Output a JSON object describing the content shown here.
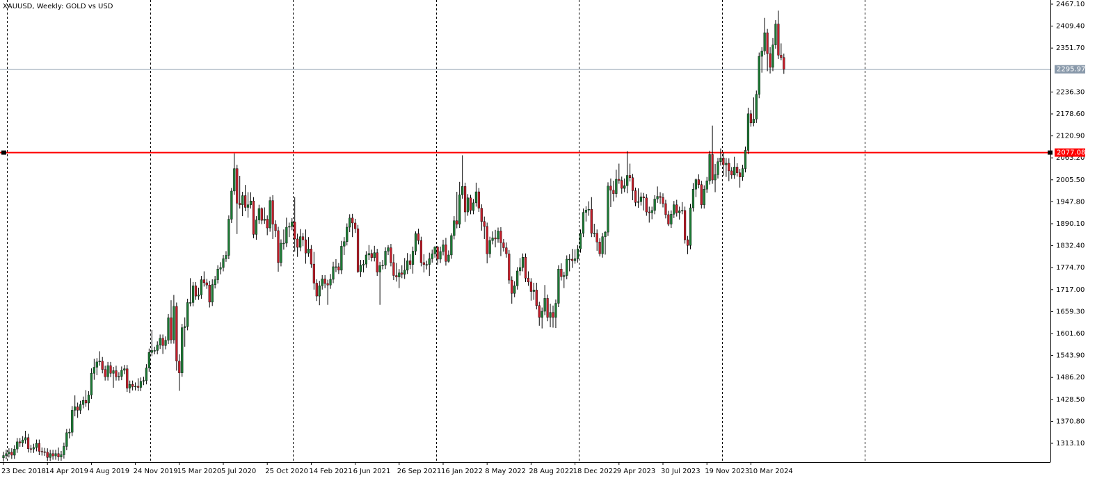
{
  "chart_data": {
    "type": "candlestick",
    "title": "XAUUSD, Weekly:  GOLD vs USD",
    "categories": [
      "23 Dec 2018",
      null,
      null,
      null,
      null,
      null,
      null,
      null,
      null,
      null,
      null,
      null,
      null,
      null,
      null,
      null,
      "14 Apr 2019",
      null,
      null,
      null,
      null,
      null,
      null,
      null,
      null,
      null,
      null,
      null,
      null,
      null,
      null,
      null,
      "4 Aug 2019",
      null,
      null,
      null,
      null,
      null,
      null,
      null,
      null,
      null,
      null,
      null,
      null,
      null,
      null,
      null,
      "24 Nov 2019",
      null,
      null,
      null,
      null,
      null,
      null,
      null,
      null,
      null,
      null,
      null,
      null,
      null,
      null,
      null,
      "15 Mar 2020",
      null,
      null,
      null,
      null,
      null,
      null,
      null,
      null,
      null,
      null,
      null,
      null,
      null,
      null,
      null,
      "5 Jul 2020",
      null,
      null,
      null,
      null,
      null,
      null,
      null,
      null,
      null,
      null,
      null,
      null,
      null,
      null,
      null,
      "25 Oct 2020",
      null,
      null,
      null,
      null,
      null,
      null,
      null,
      null,
      null,
      null,
      null,
      null,
      null,
      null,
      null,
      "14 Feb 2021",
      null,
      null,
      null,
      null,
      null,
      null,
      null,
      null,
      null,
      null,
      null,
      null,
      null,
      null,
      null,
      "6 Jun 2021",
      null,
      null,
      null,
      null,
      null,
      null,
      null,
      null,
      null,
      null,
      null,
      null,
      null,
      null,
      null,
      "26 Sep 2021",
      null,
      null,
      null,
      null,
      null,
      null,
      null,
      null,
      null,
      null,
      null,
      null,
      null,
      null,
      null,
      "16 Jan 2022",
      null,
      null,
      null,
      null,
      null,
      null,
      null,
      null,
      null,
      null,
      null,
      null,
      null,
      null,
      null,
      "8 May 2022",
      null,
      null,
      null,
      null,
      null,
      null,
      null,
      null,
      null,
      null,
      null,
      null,
      null,
      null,
      null,
      "28 Aug 2022",
      null,
      null,
      null,
      null,
      null,
      null,
      null,
      null,
      null,
      null,
      null,
      null,
      null,
      null,
      null,
      "18 Dec 2022",
      null,
      null,
      null,
      null,
      null,
      null,
      null,
      null,
      null,
      null,
      null,
      null,
      null,
      null,
      null,
      "9 Apr 2023",
      null,
      null,
      null,
      null,
      null,
      null,
      null,
      null,
      null,
      null,
      null,
      null,
      null,
      null,
      null,
      "30 Jul 2023",
      null,
      null,
      null,
      null,
      null,
      null,
      null,
      null,
      null,
      null,
      null,
      null,
      null,
      null,
      null,
      "19 Nov 2023",
      null,
      null,
      null,
      null,
      null,
      null,
      null,
      null,
      null,
      null,
      null,
      null,
      null,
      null,
      null,
      "10 Mar 2024",
      null,
      null,
      null,
      null,
      null,
      null,
      null,
      null,
      null,
      null,
      null,
      null
    ],
    "open": [
      1275,
      1281,
      1286,
      1290,
      1282,
      1298,
      1317,
      1314,
      1322,
      1328,
      1299,
      1298,
      1302,
      1313,
      1292,
      1291,
      1290,
      1276,
      1286,
      1280,
      1286,
      1277,
      1283,
      1305,
      1341,
      1342,
      1400,
      1409,
      1400,
      1415,
      1426,
      1419,
      1440,
      1497,
      1513,
      1527,
      1529,
      1507,
      1488,
      1517,
      1497,
      1504,
      1488,
      1489,
      1505,
      1509,
      1458,
      1468,
      1462,
      1463,
      1460,
      1476,
      1478,
      1511,
      1552,
      1557,
      1557,
      1571,
      1589,
      1570,
      1584,
      1643,
      1585,
      1673,
      1529,
      1498,
      1617,
      1620,
      1683,
      1683,
      1727,
      1700,
      1703,
      1743,
      1735,
      1729,
      1684,
      1730,
      1743,
      1771,
      1775,
      1798,
      1807,
      1902,
      1976,
      2035,
      1944,
      1940,
      1964,
      1933,
      1940,
      1950,
      1862,
      1900,
      1930,
      1899,
      1902,
      1879,
      1951,
      1889,
      1872,
      1788,
      1839,
      1839,
      1881,
      1883,
      1895,
      1850,
      1828,
      1856,
      1848,
      1813,
      1824,
      1784,
      1734,
      1700,
      1727,
      1745,
      1733,
      1729,
      1744,
      1777,
      1777,
      1768,
      1831,
      1843,
      1881,
      1905,
      1892,
      1877,
      1764,
      1781,
      1784,
      1808,
      1812,
      1801,
      1814,
      1763,
      1780,
      1781,
      1818,
      1827,
      1788,
      1754,
      1750,
      1761,
      1757,
      1768,
      1793,
      1783,
      1818,
      1864,
      1846,
      1788,
      1783,
      1783,
      1798,
      1811,
      1829,
      1797,
      1817,
      1835,
      1791,
      1808,
      1859,
      1898,
      1889,
      1966,
      1988,
      1921,
      1958,
      1925,
      1945,
      1974,
      1931,
      1896,
      1883,
      1811,
      1846,
      1853,
      1850,
      1871,
      1840,
      1827,
      1811,
      1742,
      1707,
      1727,
      1766,
      1775,
      1802,
      1747,
      1737,
      1712,
      1716,
      1675,
      1644,
      1660,
      1694,
      1644,
      1657,
      1644,
      1681,
      1771,
      1751,
      1754,
      1797,
      1797,
      1793,
      1798,
      1824,
      1865,
      1920,
      1926,
      1928,
      1865,
      1865,
      1842,
      1811,
      1856,
      1868,
      1989,
      1978,
      1969,
      2007,
      2004,
      1983,
      1990,
      2017,
      2011,
      1977,
      1946,
      1948,
      1961,
      1958,
      1921,
      1919,
      1925,
      1955,
      1962,
      1959,
      1943,
      1914,
      1889,
      1915,
      1940,
      1919,
      1924,
      1925,
      1848,
      1833,
      1932,
      1981,
      2006,
      1993,
      1940,
      1981,
      2003,
      2072,
      2005,
      2019,
      2053,
      2063,
      2045,
      2049,
      2029,
      2018,
      2039,
      2024,
      2013,
      2035,
      2083,
      2179,
      2155,
      2165,
      2230,
      2330,
      2344,
      2392,
      2337,
      2301,
      2360,
      2415,
      2333,
      2327
    ],
    "high": [
      1291,
      1296,
      1300,
      1300,
      1308,
      1327,
      1327,
      1332,
      1346,
      1338,
      1309,
      1312,
      1323,
      1323,
      1302,
      1301,
      1300,
      1296,
      1296,
      1296,
      1302,
      1293,
      1315,
      1351,
      1352,
      1411,
      1439,
      1420,
      1425,
      1436,
      1453,
      1450,
      1510,
      1535,
      1537,
      1555,
      1540,
      1517,
      1527,
      1527,
      1514,
      1517,
      1500,
      1515,
      1519,
      1519,
      1478,
      1478,
      1473,
      1484,
      1486,
      1488,
      1521,
      1562,
      1611,
      1567,
      1581,
      1599,
      1599,
      1594,
      1653,
      1689,
      1703,
      1683,
      1547,
      1627,
      1644,
      1693,
      1747,
      1737,
      1737,
      1722,
      1753,
      1765,
      1745,
      1740,
      1744,
      1753,
      1781,
      1789,
      1808,
      1818,
      1912,
      1984,
      2075,
      2045,
      2016,
      1974,
      1992,
      1973,
      1973,
      1960,
      1910,
      1940,
      1933,
      1933,
      1912,
      1961,
      1965,
      1899,
      1882,
      1849,
      1875,
      1906,
      1893,
      1905,
      1960,
      1864,
      1876,
      1866,
      1875,
      1855,
      1834,
      1816,
      1744,
      1740,
      1755,
      1755,
      1743,
      1758,
      1790,
      1797,
      1787,
      1845,
      1855,
      1891,
      1915,
      1916,
      1903,
      1887,
      1795,
      1795,
      1818,
      1834,
      1822,
      1832,
      1824,
      1790,
      1795,
      1828,
      1834,
      1837,
      1810,
      1787,
      1771,
      1781,
      1800,
      1813,
      1810,
      1830,
      1870,
      1877,
      1856,
      1810,
      1793,
      1814,
      1822,
      1831,
      1832,
      1830,
      1848,
      1853,
      1820,
      1865,
      1910,
      1974,
      2000,
      2070,
      1998,
      1968,
      1966,
      1955,
      1998,
      1984,
      1941,
      1909,
      1893,
      1856,
      1870,
      1874,
      1880,
      1881,
      1850,
      1841,
      1821,
      1752,
      1739,
      1776,
      1800,
      1812,
      1812,
      1765,
      1747,
      1735,
      1735,
      1685,
      1670,
      1729,
      1704,
      1680,
      1675,
      1691,
      1781,
      1786,
      1764,
      1807,
      1810,
      1824,
      1823,
      1834,
      1875,
      1930,
      1936,
      1949,
      1960,
      1890,
      1875,
      1852,
      1866,
      1871,
      1999,
      2009,
      2003,
      2032,
      2048,
      2014,
      2009,
      2081,
      2048,
      2021,
      1985,
      1983,
      1972,
      1971,
      1968,
      1935,
      1935,
      1965,
      1988,
      1973,
      1970,
      1953,
      1924,
      1925,
      1950,
      1953,
      1935,
      1947,
      1935,
      1858,
      1942,
      1997,
      2009,
      2020,
      2003,
      1991,
      2013,
      2082,
      2148,
      2047,
      2063,
      2088,
      2078,
      2063,
      2062,
      2039,
      2066,
      2049,
      2034,
      2045,
      2093,
      2195,
      2189,
      2222,
      2240,
      2340,
      2354,
      2431,
      2402,
      2354,
      2378,
      2425,
      2450,
      2364,
      2337
    ],
    "low": [
      1265,
      1271,
      1276,
      1272,
      1272,
      1288,
      1304,
      1304,
      1312,
      1289,
      1288,
      1288,
      1292,
      1282,
      1281,
      1280,
      1266,
      1266,
      1270,
      1270,
      1267,
      1267,
      1273,
      1295,
      1326,
      1332,
      1384,
      1380,
      1390,
      1405,
      1409,
      1400,
      1430,
      1480,
      1492,
      1517,
      1497,
      1478,
      1478,
      1487,
      1459,
      1478,
      1478,
      1479,
      1495,
      1448,
      1445,
      1452,
      1452,
      1450,
      1450,
      1466,
      1468,
      1501,
      1542,
      1547,
      1547,
      1561,
      1548,
      1560,
      1574,
      1575,
      1575,
      1504,
      1451,
      1488,
      1567,
      1610,
      1673,
      1673,
      1690,
      1690,
      1693,
      1725,
      1719,
      1670,
      1674,
      1720,
      1733,
      1757,
      1765,
      1790,
      1797,
      1892,
      1966,
      1863,
      1930,
      1910,
      1923,
      1906,
      1930,
      1852,
      1848,
      1890,
      1889,
      1890,
      1860,
      1869,
      1850,
      1855,
      1764,
      1778,
      1822,
      1829,
      1855,
      1873,
      1817,
      1803,
      1818,
      1831,
      1785,
      1803,
      1774,
      1717,
      1687,
      1676,
      1717,
      1721,
      1677,
      1719,
      1734,
      1763,
      1758,
      1758,
      1808,
      1833,
      1868,
      1855,
      1866,
      1761,
      1750,
      1762,
      1774,
      1795,
      1791,
      1791,
      1753,
      1677,
      1770,
      1771,
      1808,
      1778,
      1742,
      1738,
      1721,
      1747,
      1745,
      1758,
      1771,
      1759,
      1808,
      1836,
      1778,
      1762,
      1770,
      1753,
      1788,
      1801,
      1782,
      1787,
      1807,
      1780,
      1788,
      1798,
      1849,
      1878,
      1879,
      1956,
      1895,
      1911,
      1915,
      1915,
      1935,
      1921,
      1872,
      1850,
      1786,
      1801,
      1836,
      1828,
      1840,
      1805,
      1817,
      1801,
      1732,
      1680,
      1697,
      1717,
      1754,
      1765,
      1737,
      1727,
      1688,
      1690,
      1665,
      1622,
      1615,
      1650,
      1634,
      1618,
      1617,
      1616,
      1671,
      1741,
      1721,
      1744,
      1765,
      1774,
      1785,
      1788,
      1814,
      1855,
      1896,
      1911,
      1855,
      1855,
      1819,
      1804,
      1801,
      1809,
      1858,
      1934,
      1949,
      1959,
      1995,
      1969,
      1973,
      1970,
      2001,
      1952,
      1936,
      1932,
      1938,
      1925,
      1911,
      1893,
      1902,
      1915,
      1945,
      1942,
      1933,
      1904,
      1884,
      1879,
      1905,
      1909,
      1901,
      1915,
      1838,
      1810,
      1823,
      1922,
      1960,
      1983,
      1930,
      1930,
      1971,
      1993,
      1995,
      1973,
      2009,
      2043,
      2016,
      2013,
      2002,
      2008,
      2008,
      2014,
      1985,
      2003,
      2025,
      2073,
      2145,
      2146,
      2155,
      2220,
      2287,
      2334,
      2291,
      2285,
      2291,
      2350,
      2323,
      2320,
      2284
    ],
    "close": [
      1281,
      1286,
      1290,
      1282,
      1298,
      1317,
      1314,
      1322,
      1328,
      1299,
      1298,
      1302,
      1313,
      1292,
      1291,
      1290,
      1276,
      1286,
      1280,
      1286,
      1277,
      1283,
      1305,
      1341,
      1342,
      1400,
      1409,
      1400,
      1415,
      1426,
      1419,
      1440,
      1497,
      1513,
      1527,
      1529,
      1507,
      1488,
      1517,
      1497,
      1504,
      1488,
      1489,
      1505,
      1509,
      1458,
      1468,
      1462,
      1463,
      1460,
      1476,
      1478,
      1511,
      1552,
      1557,
      1557,
      1571,
      1589,
      1570,
      1584,
      1643,
      1585,
      1673,
      1529,
      1498,
      1617,
      1620,
      1683,
      1683,
      1727,
      1700,
      1703,
      1743,
      1735,
      1729,
      1684,
      1730,
      1743,
      1771,
      1775,
      1798,
      1807,
      1902,
      1976,
      2035,
      1944,
      1940,
      1964,
      1933,
      1940,
      1950,
      1862,
      1900,
      1930,
      1899,
      1902,
      1879,
      1951,
      1889,
      1872,
      1788,
      1839,
      1839,
      1881,
      1883,
      1895,
      1850,
      1828,
      1856,
      1848,
      1813,
      1824,
      1784,
      1734,
      1700,
      1727,
      1745,
      1733,
      1729,
      1744,
      1777,
      1777,
      1768,
      1831,
      1843,
      1881,
      1905,
      1892,
      1877,
      1764,
      1781,
      1784,
      1808,
      1812,
      1801,
      1814,
      1763,
      1780,
      1781,
      1818,
      1827,
      1788,
      1754,
      1750,
      1761,
      1757,
      1768,
      1793,
      1783,
      1818,
      1864,
      1846,
      1788,
      1783,
      1783,
      1798,
      1811,
      1829,
      1797,
      1817,
      1835,
      1791,
      1808,
      1859,
      1898,
      1889,
      1966,
      1988,
      1921,
      1958,
      1925,
      1945,
      1974,
      1931,
      1896,
      1883,
      1811,
      1846,
      1853,
      1850,
      1871,
      1840,
      1827,
      1811,
      1742,
      1707,
      1727,
      1766,
      1775,
      1802,
      1747,
      1737,
      1712,
      1716,
      1675,
      1644,
      1660,
      1694,
      1644,
      1657,
      1644,
      1681,
      1771,
      1751,
      1754,
      1797,
      1797,
      1793,
      1798,
      1824,
      1865,
      1920,
      1926,
      1928,
      1865,
      1865,
      1842,
      1811,
      1856,
      1868,
      1989,
      1978,
      1969,
      2007,
      2004,
      1983,
      1990,
      2017,
      2011,
      1977,
      1946,
      1948,
      1961,
      1958,
      1921,
      1919,
      1925,
      1955,
      1962,
      1959,
      1943,
      1914,
      1889,
      1915,
      1940,
      1919,
      1924,
      1925,
      1848,
      1833,
      1932,
      1981,
      2006,
      1993,
      1940,
      1981,
      2003,
      2072,
      2005,
      2019,
      2053,
      2063,
      2045,
      2049,
      2029,
      2018,
      2039,
      2024,
      2013,
      2035,
      2083,
      2179,
      2155,
      2165,
      2230,
      2330,
      2344,
      2392,
      2337,
      2301,
      2360,
      2415,
      2333,
      2327,
      2296
    ],
    "up_color": "#1b7a34",
    "down_color": "#c41e2a",
    "wick_color": "#000000",
    "ylim": [
      1263.8,
      2478.0
    ],
    "yticks": [
      {
        "value": 2467.1,
        "label": "2467.10"
      },
      {
        "value": 2409.4,
        "label": "2409.40"
      },
      {
        "value": 2351.7,
        "label": "2351.70"
      },
      {
        "value": 2236.3,
        "label": "2236.30"
      },
      {
        "value": 2178.6,
        "label": "2178.60"
      },
      {
        "value": 2120.9,
        "label": "2120.90"
      },
      {
        "value": 2063.2,
        "label": "2063.20"
      },
      {
        "value": 2005.5,
        "label": "2005.50"
      },
      {
        "value": 1947.8,
        "label": "1947.80"
      },
      {
        "value": 1890.1,
        "label": "1890.10"
      },
      {
        "value": 1832.4,
        "label": "1832.40"
      },
      {
        "value": 1774.7,
        "label": "1774.70"
      },
      {
        "value": 1717,
        "label": "1717.00"
      },
      {
        "value": 1659.3,
        "label": "1659.30"
      },
      {
        "value": 1601.6,
        "label": "1601.60"
      },
      {
        "value": 1543.9,
        "label": "1543.90"
      },
      {
        "value": 1486.2,
        "label": "1486.20"
      },
      {
        "value": 1428.5,
        "label": "1428.50"
      },
      {
        "value": 1370.8,
        "label": "1370.80"
      },
      {
        "value": 1313.1,
        "label": "1313.10"
      }
    ],
    "current_price": 2295.97,
    "current_price_color": "#8a9aab",
    "level": 2077.08,
    "level_color": "#ff0000"
  }
}
